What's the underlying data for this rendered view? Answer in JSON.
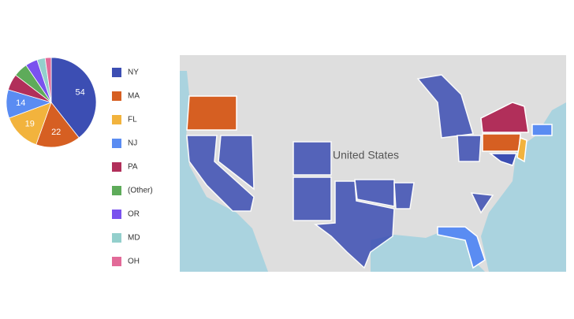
{
  "chart_data": {
    "type": "pie",
    "categories": [
      "NY",
      "MA",
      "FL",
      "NJ",
      "PA",
      "(Other)",
      "OR",
      "MD",
      "OH"
    ],
    "values": [
      54,
      22,
      19,
      14,
      8,
      7,
      6,
      4,
      3
    ],
    "colors": [
      "#3c4eb3",
      "#d65f22",
      "#f2b33d",
      "#5a8cf2",
      "#b12f5a",
      "#5eab5a",
      "#7a52ee",
      "#93cfcc",
      "#e26a98"
    ],
    "legend": "right"
  },
  "map": {
    "label": "United States"
  }
}
